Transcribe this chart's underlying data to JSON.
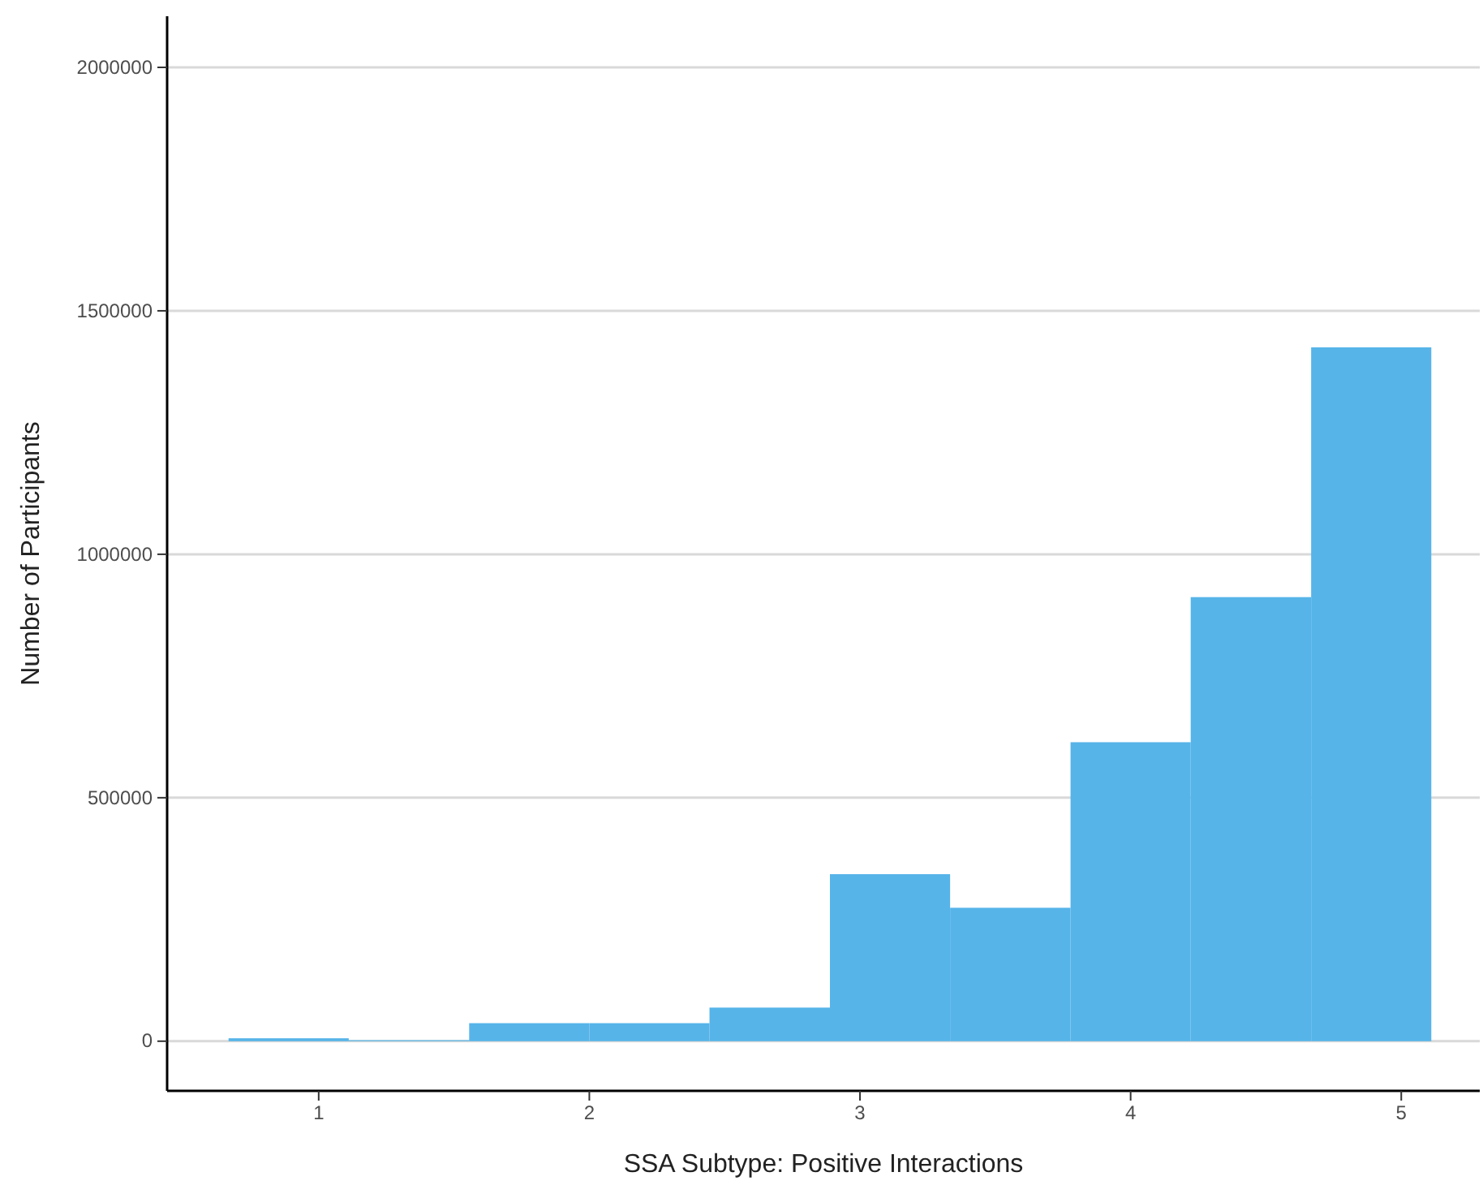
{
  "chart_data": {
    "type": "histogram",
    "xlabel": "SSA Subtype: Positive Interactions",
    "ylabel": "Number of Participants",
    "bins": [
      0.667,
      1.111,
      1.556,
      2.0,
      2.444,
      2.889,
      3.333,
      3.778,
      4.222,
      4.667,
      5.111
    ],
    "values": [
      6000,
      2000,
      37000,
      37000,
      69000,
      343000,
      274000,
      614000,
      912000,
      1425000
    ],
    "color": "#56b4e9",
    "xlim": [
      0.44,
      5.29
    ],
    "xticks": [
      1,
      2,
      3,
      4,
      5
    ],
    "ylim": [
      -102000,
      2105000
    ],
    "yticks": [
      0,
      500000,
      1000000,
      1500000,
      2000000
    ],
    "grid": "y"
  }
}
